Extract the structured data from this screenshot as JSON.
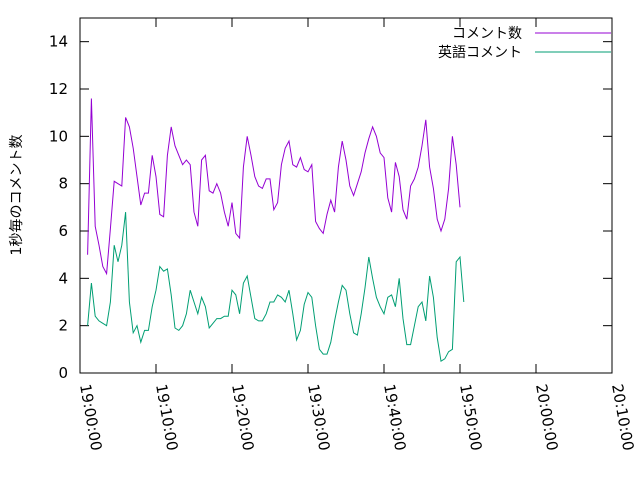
{
  "chart_data": {
    "type": "line",
    "title": "",
    "xlabel": "",
    "ylabel": "1秒毎のコメント数",
    "ylim": [
      0,
      15
    ],
    "yticks": [
      "0",
      "2",
      "4",
      "6",
      "8",
      "10",
      "12",
      "14"
    ],
    "xlim": [
      "19:00:00",
      "20:10:00"
    ],
    "xticks": [
      "19:00:00",
      "19:10:00",
      "19:20:00",
      "19:30:00",
      "19:40:00",
      "19:50:00",
      "20:00:00",
      "20:10:00"
    ],
    "grid": false,
    "legend": "top-right",
    "series": [
      {
        "name": "コメント数",
        "color": "#9400d3",
        "points": [
          [
            "19:01:00",
            5.0
          ],
          [
            "19:01:30",
            11.6
          ],
          [
            "19:02:00",
            6.2
          ],
          [
            "19:02:30",
            5.4
          ],
          [
            "19:03:00",
            4.5
          ],
          [
            "19:03:30",
            4.2
          ],
          [
            "19:04:00",
            6.1
          ],
          [
            "19:04:30",
            8.1
          ],
          [
            "19:05:00",
            8.0
          ],
          [
            "19:05:30",
            7.9
          ],
          [
            "19:06:00",
            10.8
          ],
          [
            "19:06:30",
            10.4
          ],
          [
            "19:07:00",
            9.5
          ],
          [
            "19:07:30",
            8.3
          ],
          [
            "19:08:00",
            7.1
          ],
          [
            "19:08:30",
            7.6
          ],
          [
            "19:09:00",
            7.6
          ],
          [
            "19:09:30",
            9.2
          ],
          [
            "19:10:00",
            8.3
          ],
          [
            "19:10:30",
            6.7
          ],
          [
            "19:11:00",
            6.6
          ],
          [
            "19:11:30",
            9.2
          ],
          [
            "19:12:00",
            10.4
          ],
          [
            "19:12:30",
            9.6
          ],
          [
            "19:13:00",
            9.2
          ],
          [
            "19:13:30",
            8.8
          ],
          [
            "19:14:00",
            9.0
          ],
          [
            "19:14:30",
            8.8
          ],
          [
            "19:15:00",
            6.8
          ],
          [
            "19:15:30",
            6.2
          ],
          [
            "19:16:00",
            9.0
          ],
          [
            "19:16:30",
            9.2
          ],
          [
            "19:17:00",
            7.7
          ],
          [
            "19:17:30",
            7.6
          ],
          [
            "19:18:00",
            8.0
          ],
          [
            "19:18:30",
            7.6
          ],
          [
            "19:19:00",
            6.8
          ],
          [
            "19:19:30",
            6.2
          ],
          [
            "19:20:00",
            7.2
          ],
          [
            "19:20:30",
            5.9
          ],
          [
            "19:21:00",
            5.7
          ],
          [
            "19:21:30",
            8.7
          ],
          [
            "19:22:00",
            10.0
          ],
          [
            "19:22:30",
            9.2
          ],
          [
            "19:23:00",
            8.3
          ],
          [
            "19:23:30",
            7.9
          ],
          [
            "19:24:00",
            7.8
          ],
          [
            "19:24:30",
            8.2
          ],
          [
            "19:25:00",
            8.2
          ],
          [
            "19:25:30",
            6.9
          ],
          [
            "19:26:00",
            7.2
          ],
          [
            "19:26:30",
            8.8
          ],
          [
            "19:27:00",
            9.5
          ],
          [
            "19:27:30",
            9.8
          ],
          [
            "19:28:00",
            8.8
          ],
          [
            "19:28:30",
            8.7
          ],
          [
            "19:29:00",
            9.1
          ],
          [
            "19:29:30",
            8.6
          ],
          [
            "19:30:00",
            8.5
          ],
          [
            "19:30:30",
            8.8
          ],
          [
            "19:31:00",
            6.4
          ],
          [
            "19:31:30",
            6.1
          ],
          [
            "19:32:00",
            5.9
          ],
          [
            "19:32:30",
            6.7
          ],
          [
            "19:33:00",
            7.3
          ],
          [
            "19:33:30",
            6.8
          ],
          [
            "19:34:00",
            8.7
          ],
          [
            "19:34:30",
            9.8
          ],
          [
            "19:35:00",
            9.0
          ],
          [
            "19:35:30",
            7.9
          ],
          [
            "19:36:00",
            7.5
          ],
          [
            "19:36:30",
            8.0
          ],
          [
            "19:37:00",
            8.5
          ],
          [
            "19:37:30",
            9.3
          ],
          [
            "19:38:00",
            9.9
          ],
          [
            "19:38:30",
            10.4
          ],
          [
            "19:39:00",
            10.0
          ],
          [
            "19:39:30",
            9.3
          ],
          [
            "19:40:00",
            9.1
          ],
          [
            "19:40:30",
            7.4
          ],
          [
            "19:41:00",
            6.8
          ],
          [
            "19:41:30",
            8.9
          ],
          [
            "19:42:00",
            8.3
          ],
          [
            "19:42:30",
            6.9
          ],
          [
            "19:43:00",
            6.5
          ],
          [
            "19:43:30",
            7.9
          ],
          [
            "19:44:00",
            8.2
          ],
          [
            "19:44:30",
            8.7
          ],
          [
            "19:45:00",
            9.6
          ],
          [
            "19:45:30",
            10.7
          ],
          [
            "19:46:00",
            8.7
          ],
          [
            "19:46:30",
            7.8
          ],
          [
            "19:47:00",
            6.5
          ],
          [
            "19:47:30",
            6.0
          ],
          [
            "19:48:00",
            6.5
          ],
          [
            "19:48:30",
            7.8
          ],
          [
            "19:49:00",
            10.0
          ],
          [
            "19:49:30",
            8.8
          ],
          [
            "19:50:00",
            7.0
          ]
        ]
      },
      {
        "name": "英語コメント",
        "color": "#009e73",
        "points": [
          [
            "19:01:00",
            2.0
          ],
          [
            "19:01:30",
            3.8
          ],
          [
            "19:02:00",
            2.4
          ],
          [
            "19:02:30",
            2.2
          ],
          [
            "19:03:00",
            2.1
          ],
          [
            "19:03:30",
            2.0
          ],
          [
            "19:04:00",
            3.0
          ],
          [
            "19:04:30",
            5.4
          ],
          [
            "19:05:00",
            4.7
          ],
          [
            "19:05:30",
            5.4
          ],
          [
            "19:06:00",
            6.8
          ],
          [
            "19:06:30",
            3.0
          ],
          [
            "19:07:00",
            1.7
          ],
          [
            "19:07:30",
            2.0
          ],
          [
            "19:08:00",
            1.3
          ],
          [
            "19:08:30",
            1.8
          ],
          [
            "19:09:00",
            1.8
          ],
          [
            "19:09:30",
            2.8
          ],
          [
            "19:10:00",
            3.5
          ],
          [
            "19:10:30",
            4.5
          ],
          [
            "19:11:00",
            4.3
          ],
          [
            "19:11:30",
            4.4
          ],
          [
            "19:12:00",
            3.3
          ],
          [
            "19:12:30",
            1.9
          ],
          [
            "19:13:00",
            1.8
          ],
          [
            "19:13:30",
            2.0
          ],
          [
            "19:14:00",
            2.5
          ],
          [
            "19:14:30",
            3.5
          ],
          [
            "19:15:00",
            3.0
          ],
          [
            "19:15:30",
            2.5
          ],
          [
            "19:16:00",
            3.2
          ],
          [
            "19:16:30",
            2.8
          ],
          [
            "19:17:00",
            1.9
          ],
          [
            "19:17:30",
            2.1
          ],
          [
            "19:18:00",
            2.3
          ],
          [
            "19:18:30",
            2.3
          ],
          [
            "19:19:00",
            2.4
          ],
          [
            "19:19:30",
            2.4
          ],
          [
            "19:20:00",
            3.5
          ],
          [
            "19:20:30",
            3.3
          ],
          [
            "19:21:00",
            2.5
          ],
          [
            "19:21:30",
            3.8
          ],
          [
            "19:22:00",
            4.1
          ],
          [
            "19:22:30",
            3.2
          ],
          [
            "19:23:00",
            2.3
          ],
          [
            "19:23:30",
            2.2
          ],
          [
            "19:24:00",
            2.2
          ],
          [
            "19:24:30",
            2.5
          ],
          [
            "19:25:00",
            3.0
          ],
          [
            "19:25:30",
            3.0
          ],
          [
            "19:26:00",
            3.3
          ],
          [
            "19:26:30",
            3.2
          ],
          [
            "19:27:00",
            3.0
          ],
          [
            "19:27:30",
            3.5
          ],
          [
            "19:28:00",
            2.5
          ],
          [
            "19:28:30",
            1.4
          ],
          [
            "19:29:00",
            1.8
          ],
          [
            "19:29:30",
            2.9
          ],
          [
            "19:30:00",
            3.4
          ],
          [
            "19:30:30",
            3.2
          ],
          [
            "19:31:00",
            2.0
          ],
          [
            "19:31:30",
            1.0
          ],
          [
            "19:32:00",
            0.8
          ],
          [
            "19:32:30",
            0.8
          ],
          [
            "19:33:00",
            1.3
          ],
          [
            "19:33:30",
            2.2
          ],
          [
            "19:34:00",
            3.0
          ],
          [
            "19:34:30",
            3.7
          ],
          [
            "19:35:00",
            3.5
          ],
          [
            "19:35:30",
            2.5
          ],
          [
            "19:36:00",
            1.7
          ],
          [
            "19:36:30",
            1.6
          ],
          [
            "19:37:00",
            2.5
          ],
          [
            "19:37:30",
            3.6
          ],
          [
            "19:38:00",
            4.9
          ],
          [
            "19:38:30",
            4.0
          ],
          [
            "19:39:00",
            3.2
          ],
          [
            "19:39:30",
            2.8
          ],
          [
            "19:40:00",
            2.5
          ],
          [
            "19:40:30",
            3.2
          ],
          [
            "19:41:00",
            3.3
          ],
          [
            "19:41:30",
            2.8
          ],
          [
            "19:42:00",
            4.0
          ],
          [
            "19:42:30",
            2.3
          ],
          [
            "19:43:00",
            1.2
          ],
          [
            "19:43:30",
            1.2
          ],
          [
            "19:44:00",
            2.0
          ],
          [
            "19:44:30",
            2.8
          ],
          [
            "19:45:00",
            3.0
          ],
          [
            "19:45:30",
            2.2
          ],
          [
            "19:46:00",
            4.1
          ],
          [
            "19:46:30",
            3.2
          ],
          [
            "19:47:00",
            1.5
          ],
          [
            "19:47:30",
            0.5
          ],
          [
            "19:48:00",
            0.6
          ],
          [
            "19:48:30",
            0.9
          ],
          [
            "19:49:00",
            1.0
          ],
          [
            "19:49:30",
            4.7
          ],
          [
            "19:50:00",
            4.9
          ],
          [
            "19:50:30",
            3.0
          ]
        ]
      }
    ]
  }
}
